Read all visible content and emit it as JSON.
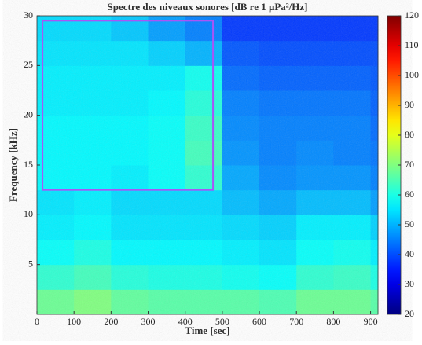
{
  "chart_data": {
    "type": "spectrogram",
    "title": "Spectre des niveaux sonores [dB re 1 μPa²/Hz]",
    "x_label": "Time [sec]",
    "y_label": "Frequency [kHz]",
    "xbins": [
      0,
      100,
      200,
      300,
      400,
      500,
      600,
      700,
      800,
      900,
      920
    ],
    "ybins": [
      0,
      2.5,
      5,
      7.5,
      10,
      12.5,
      15,
      17.5,
      20,
      22.5,
      25,
      27.5,
      30
    ],
    "z": [
      [
        68,
        70,
        67,
        66,
        66,
        66,
        65,
        68,
        68,
        66
      ],
      [
        62,
        64,
        61,
        60,
        60,
        59,
        58,
        62,
        63,
        60
      ],
      [
        58,
        60,
        57,
        57,
        57,
        56,
        55,
        58,
        59,
        56
      ],
      [
        56,
        57,
        55,
        55,
        55,
        54,
        53,
        56,
        56,
        53
      ],
      [
        55,
        56,
        54,
        54,
        54,
        51,
        49,
        51,
        51,
        48
      ],
      [
        57,
        57,
        56,
        58,
        62,
        49,
        46,
        47,
        47,
        45
      ],
      [
        57,
        57,
        57,
        58,
        64,
        47,
        45,
        46,
        45,
        44
      ],
      [
        57,
        57,
        57,
        58,
        63,
        46,
        45,
        45,
        45,
        43
      ],
      [
        56,
        56,
        56,
        57,
        61,
        45,
        44,
        44,
        44,
        42
      ],
      [
        56,
        56,
        56,
        56,
        59,
        43,
        42,
        42,
        42,
        41
      ],
      [
        55,
        55,
        55,
        53,
        50,
        41,
        40,
        40,
        40,
        40
      ],
      [
        54,
        54,
        52,
        48,
        45,
        38,
        38,
        38,
        38,
        38
      ]
    ],
    "colormap": "jet",
    "xlim": [
      0,
      920
    ],
    "ylim": [
      0,
      30
    ],
    "xticks": [
      0,
      100,
      200,
      300,
      400,
      500,
      600,
      700,
      800,
      900
    ],
    "yticks": [
      5,
      10,
      15,
      20,
      25,
      30
    ],
    "clim": [
      20,
      120
    ],
    "cticks": [
      20,
      30,
      40,
      50,
      60,
      70,
      80,
      90,
      100,
      110,
      120
    ],
    "box": {
      "x": [
        15,
        475
      ],
      "y": [
        12.5,
        29.5
      ],
      "color": "#a855f7"
    }
  }
}
